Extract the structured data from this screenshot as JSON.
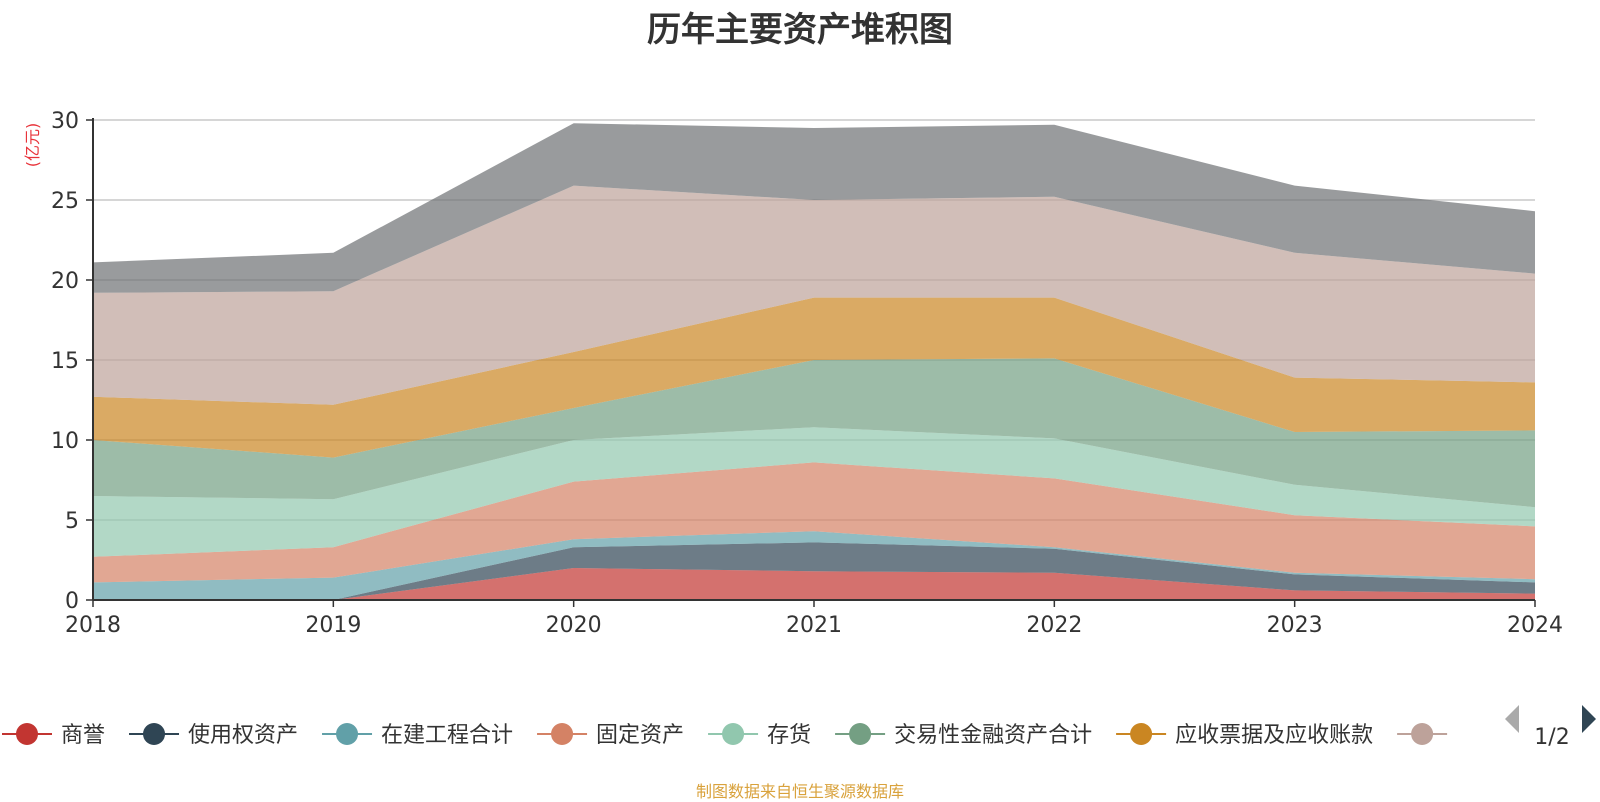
{
  "chart_data": {
    "type": "area",
    "stacked": true,
    "title": "历年主要资产堆积图",
    "unit_label": "(亿元)",
    "x": [
      "2018",
      "2019",
      "2020",
      "2021",
      "2022",
      "2023",
      "2024"
    ],
    "ylim": [
      0,
      30
    ],
    "yticks": [
      0,
      5,
      10,
      15,
      20,
      25,
      30
    ],
    "grid": true,
    "series": [
      {
        "name": "商誉",
        "color": "#c23531",
        "values": [
          0.0,
          0.0,
          2.0,
          1.8,
          1.7,
          0.6,
          0.4
        ]
      },
      {
        "name": "使用权资产",
        "color": "#2f4554",
        "values": [
          0.0,
          0.0,
          1.3,
          1.8,
          1.5,
          1.0,
          0.7
        ]
      },
      {
        "name": "在建工程合计",
        "color": "#61a0a8",
        "values": [
          1.1,
          1.4,
          0.5,
          0.7,
          0.1,
          0.1,
          0.2
        ]
      },
      {
        "name": "固定资产",
        "color": "#d48265",
        "values": [
          1.6,
          1.9,
          3.6,
          4.3,
          4.3,
          3.6,
          3.3
        ]
      },
      {
        "name": "存货",
        "color": "#91c7ae",
        "values": [
          3.8,
          3.0,
          2.6,
          2.2,
          2.5,
          1.9,
          1.2
        ]
      },
      {
        "name": "交易性金融资产合计",
        "color": "#749f83",
        "values": [
          3.5,
          2.6,
          2.0,
          4.2,
          5.0,
          3.3,
          4.8
        ]
      },
      {
        "name": "应收票据及应收账款",
        "color": "#ca8622",
        "values": [
          2.7,
          3.3,
          3.5,
          3.9,
          3.8,
          3.4,
          3.0
        ]
      },
      {
        "name": "",
        "color": "#bda29a",
        "values": [
          6.5,
          7.1,
          10.4,
          6.1,
          6.3,
          7.8,
          6.8
        ]
      },
      {
        "name": "",
        "color": "#6e7074",
        "values": [
          1.9,
          2.4,
          3.9,
          4.5,
          4.5,
          4.2,
          3.9
        ]
      }
    ]
  },
  "legend": {
    "page_indicator": "1/2",
    "truncated_color": "#bda29a"
  },
  "footer": {
    "source": "制图数据来自恒生聚源数据库"
  }
}
